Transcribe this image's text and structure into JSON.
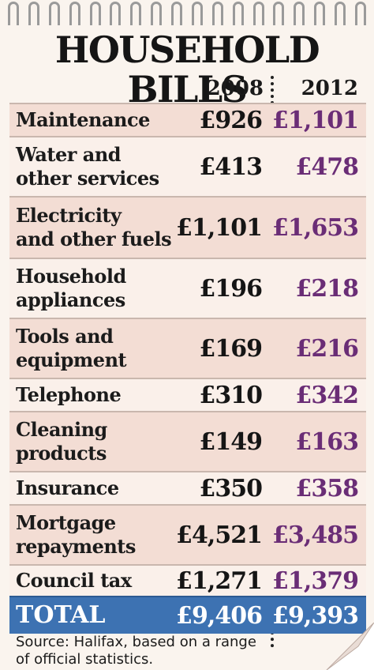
{
  "title": "HOUSEHOLD BILLS",
  "years": {
    "a": "2008",
    "b": "2012"
  },
  "rows": [
    {
      "label_1": "Maintenance",
      "label_2": "",
      "v2008": "£926",
      "v2012": "£1,101"
    },
    {
      "label_1": "Water and",
      "label_2": "other services",
      "v2008": "£413",
      "v2012": "£478"
    },
    {
      "label_1": "Electricity",
      "label_2": "and other fuels",
      "v2008": "£1,101",
      "v2012": "£1,653"
    },
    {
      "label_1": "Household",
      "label_2": "appliances",
      "v2008": "£196",
      "v2012": "£218"
    },
    {
      "label_1": "Tools and",
      "label_2": "equipment",
      "v2008": "£169",
      "v2012": "£216"
    },
    {
      "label_1": "Telephone",
      "label_2": "",
      "v2008": "£310",
      "v2012": "£342"
    },
    {
      "label_1": "Cleaning",
      "label_2": "products",
      "v2008": "£149",
      "v2012": "£163"
    },
    {
      "label_1": "Insurance",
      "label_2": "",
      "v2008": "£350",
      "v2012": "£358"
    },
    {
      "label_1": "Mortgage",
      "label_2": "repayments",
      "v2008": "£4,521",
      "v2012": "£3,485"
    },
    {
      "label_1": "Council tax",
      "label_2": "",
      "v2008": "£1,271",
      "v2012": "£1,379"
    }
  ],
  "total": {
    "label": "TOTAL",
    "v2008": "£9,406",
    "v2012": "£9,393"
  },
  "source_line_1": "Source: Halifax, based on a range",
  "source_line_2": "of official statistics.",
  "colors": {
    "total_bar": "#3d72b2",
    "value_2012": "#6a2d76",
    "row_shade": "#f3ddd4"
  }
}
